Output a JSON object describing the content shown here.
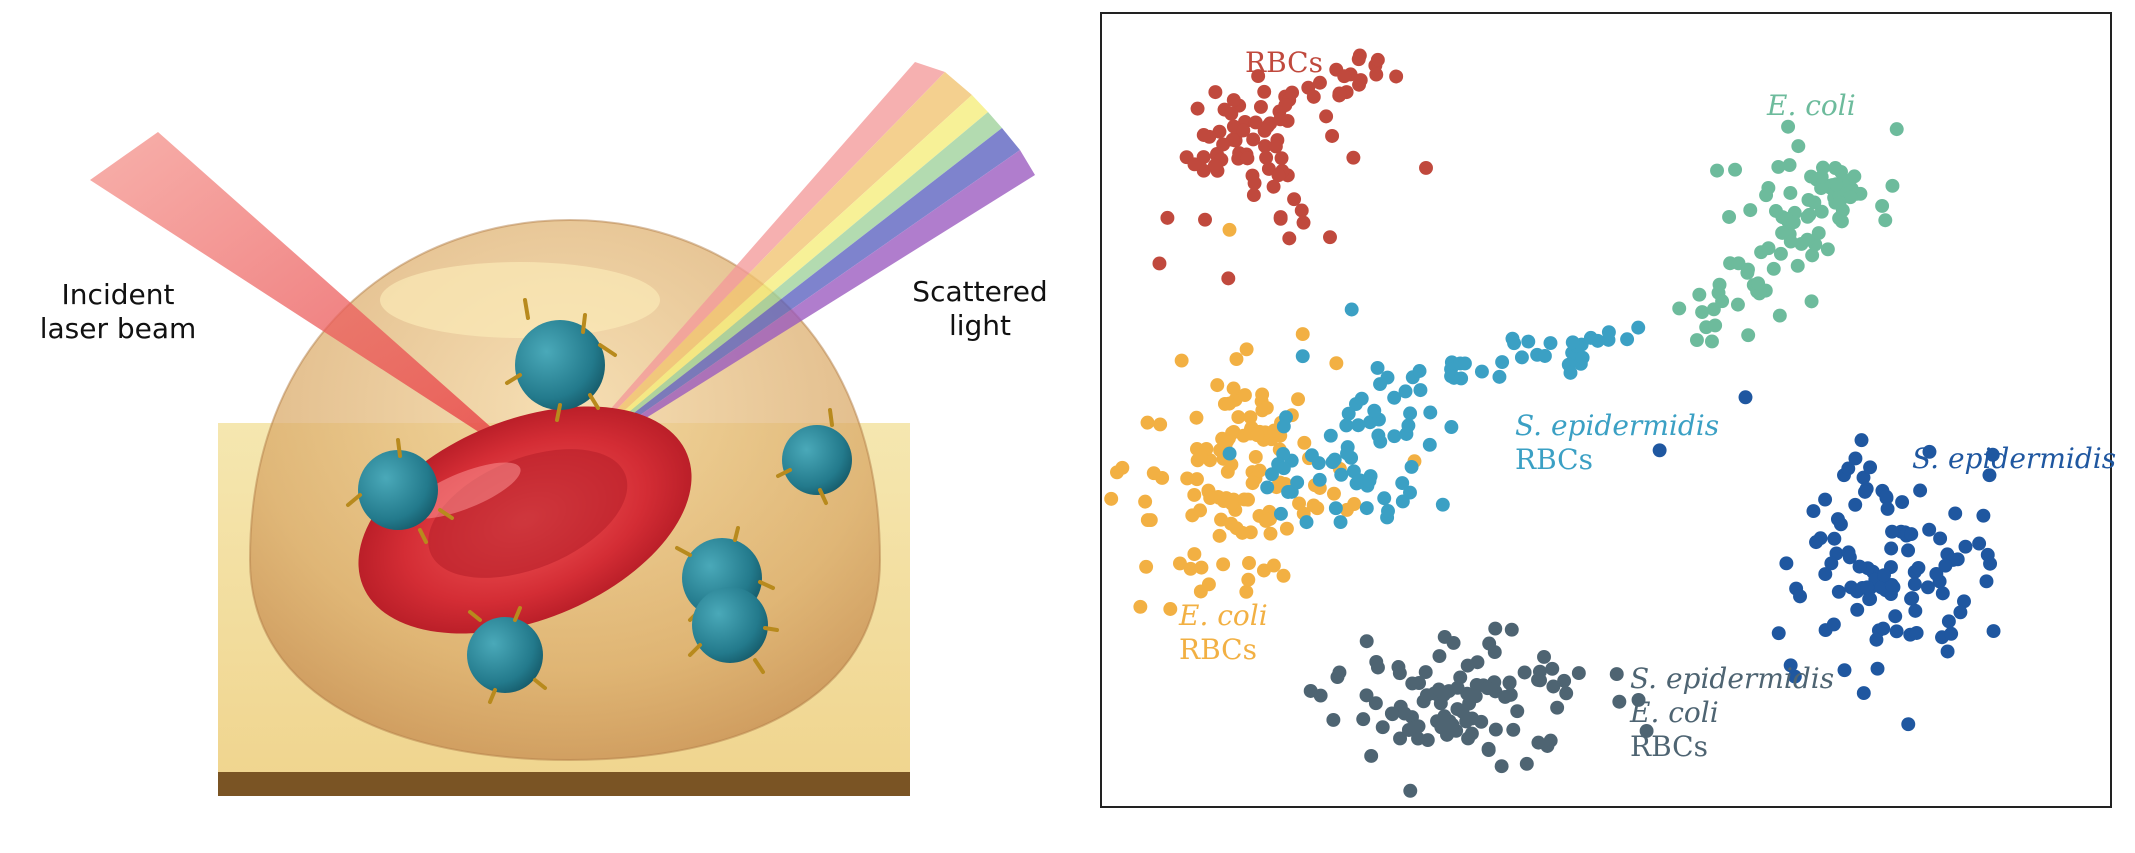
{
  "illustration": {
    "incident_label_line1": "Incident",
    "incident_label_line2": "laser beam",
    "scattered_label_line1": "Scattered",
    "scattered_label_line2": "light"
  },
  "scatter": {
    "colors": {
      "rbc": "#c0493d",
      "ecoli": "#6dbb9c",
      "sepi": "#1f57a0",
      "ecoli_rbc": "#f2b043",
      "sepi_rbc": "#3ba0c4",
      "mix": "#4e6472"
    },
    "labels": {
      "rbc": "RBCs",
      "ecoli": "E. coli",
      "sepi": "S. epidermidis",
      "sepi_rbc_1": "S. epidermidis",
      "sepi_rbc_2": "RBCs",
      "ecoli_rbc_1": "E. coli",
      "ecoli_rbc_2": "RBCs",
      "mix_1": "S. epidermidis",
      "mix_2": "E. coli",
      "mix_3": "RBCs"
    }
  }
}
